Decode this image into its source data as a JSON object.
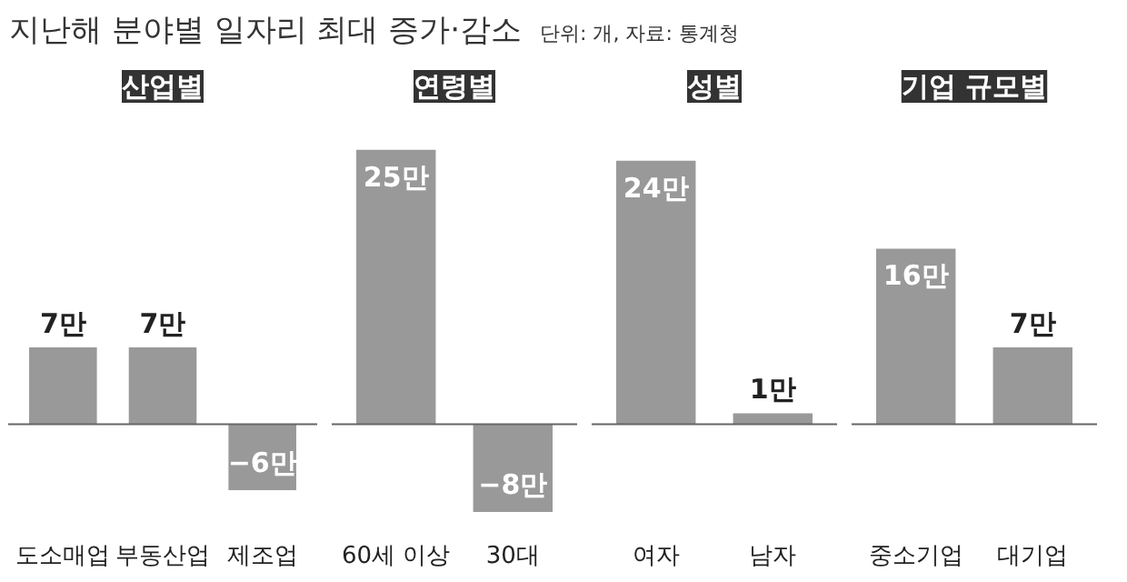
{
  "chart_data": [
    {
      "type": "bar",
      "title": "산업별",
      "subtitle": "지난해 분야별 일자리 최대 증가·감소",
      "annotations": [
        "단위: 개, 자료: 통계청"
      ],
      "categories": [
        "도소매업",
        "부동산업",
        "제조업"
      ],
      "values": [
        7,
        7,
        -6
      ],
      "value_labels": [
        "7만",
        "7만",
        "−6만"
      ],
      "color": "#999999"
    },
    {
      "type": "bar",
      "title": "연령별",
      "categories": [
        "60세 이상",
        "30대"
      ],
      "values": [
        25,
        -8
      ],
      "value_labels": [
        "25만",
        "−8만"
      ],
      "color": "#999999"
    },
    {
      "type": "bar",
      "title": "성별",
      "categories": [
        "여자",
        "남자"
      ],
      "values": [
        24,
        1
      ],
      "value_labels": [
        "24만",
        "1만"
      ],
      "color": "#999999"
    },
    {
      "type": "bar",
      "title": "기업 규모별",
      "categories": [
        "중소기업",
        "대기업"
      ],
      "values": [
        16,
        7
      ],
      "value_labels": [
        "16만",
        "7만"
      ],
      "color": "#999999"
    }
  ]
}
